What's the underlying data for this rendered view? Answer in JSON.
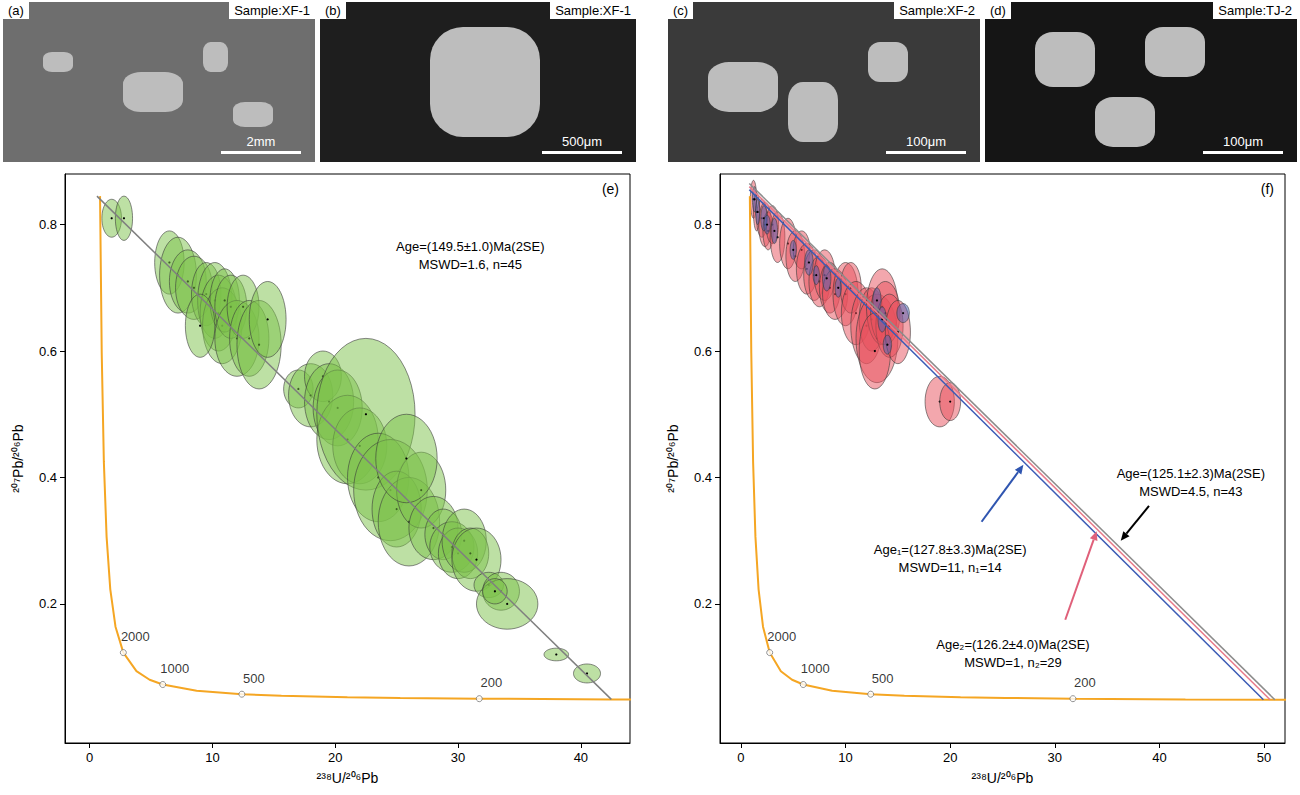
{
  "panels": [
    {
      "letter": "(a)",
      "sample": "Sample:XF-1",
      "scale_bar": "2mm"
    },
    {
      "letter": "(b)",
      "sample": "Sample:XF-1",
      "scale_bar": "500μm"
    },
    {
      "letter": "(c)",
      "sample": "Sample:XF-2",
      "scale_bar": "100μm"
    },
    {
      "letter": "(d)",
      "sample": "Sample:TJ-2",
      "scale_bar": "100μm"
    }
  ],
  "chart_data": [
    {
      "type": "scatter",
      "panel": "(e)",
      "x_label": "²³⁸U/²⁰⁶Pb",
      "y_label": "²⁰⁷Pb/²⁰⁶Pb",
      "xlim": [
        -2,
        44
      ],
      "ylim": [
        -0.02,
        0.88
      ],
      "xticks": [
        0,
        10,
        20,
        30,
        40
      ],
      "yticks": [
        0.2,
        0.4,
        0.6,
        0.8
      ],
      "concordia": {
        "color": "#f5a623",
        "x": [
          0.853,
          0.99,
          1.163,
          1.387,
          1.687,
          2.111,
          2.749,
          3.817,
          4.888,
          5.959,
          8.718,
          12.4,
          15.62,
          20.99,
          25.29,
          31.73,
          42.48,
          51.03,
          63.97
        ],
        "y": [
          0.845,
          0.597,
          0.425,
          0.306,
          0.223,
          0.164,
          0.123,
          0.0936,
          0.0801,
          0.0725,
          0.0628,
          0.0572,
          0.0547,
          0.0523,
          0.0512,
          0.0501,
          0.049,
          0.0485,
          0.048
        ],
        "age_marks": [
          {
            "age": 2000,
            "x": 2.749,
            "y": 0.123
          },
          {
            "age": 1000,
            "x": 5.959,
            "y": 0.0725
          },
          {
            "age": 500,
            "x": 12.4,
            "y": 0.0572
          },
          {
            "age": 200,
            "x": 31.73,
            "y": 0.0501
          }
        ]
      },
      "ellipses": [
        {
          "color": "#7cc24a",
          "x": [
            1.8,
            2.8,
            6.5,
            7.2,
            8,
            8.5,
            9.5,
            10.2,
            10.5,
            10.8,
            11,
            11.5,
            12,
            12.5,
            13,
            13.8,
            14.5,
            9,
            17,
            18,
            19,
            19.5,
            20.2,
            21,
            22,
            22.5,
            23.5,
            24.5,
            25,
            26,
            27,
            28,
            28.8,
            29.5,
            30,
            30.5,
            31,
            31.5,
            32.5,
            33.5,
            34,
            33,
            38,
            40.5,
            25.8
          ],
          "y": [
            0.81,
            0.81,
            0.74,
            0.72,
            0.71,
            0.7,
            0.69,
            0.68,
            0.66,
            0.64,
            0.68,
            0.67,
            0.62,
            0.67,
            0.62,
            0.61,
            0.65,
            0.64,
            0.54,
            0.53,
            0.56,
            0.52,
            0.51,
            0.46,
            0.45,
            0.5,
            0.4,
            0.38,
            0.35,
            0.33,
            0.38,
            0.32,
            0.31,
            0.29,
            0.28,
            0.3,
            0.28,
            0.27,
            0.23,
            0.22,
            0.2,
            0.22,
            0.12,
            0.09,
            0.43
          ],
          "x_err": [
            0.8,
            0.7,
            1.2,
            1.5,
            1.5,
            1.5,
            1.2,
            1.4,
            1.5,
            1.6,
            1.2,
            1.3,
            1.8,
            1.3,
            1.6,
            1.8,
            1.5,
            1.2,
            1.2,
            1.8,
            1.5,
            2,
            2,
            2.5,
            2.2,
            4,
            2.5,
            3,
            2,
            2.5,
            2,
            2,
            1.5,
            1.8,
            1.6,
            1.8,
            1.5,
            2,
            1.2,
            1.5,
            2.5,
            1,
            1,
            1.1,
            2.5
          ],
          "y_err": [
            0.03,
            0.035,
            0.05,
            0.06,
            0.05,
            0.05,
            0.05,
            0.06,
            0.06,
            0.06,
            0.05,
            0.05,
            0.06,
            0.05,
            0.06,
            0.07,
            0.06,
            0.05,
            0.03,
            0.05,
            0.04,
            0.06,
            0.06,
            0.07,
            0.06,
            0.12,
            0.07,
            0.08,
            0.06,
            0.07,
            0.06,
            0.05,
            0.04,
            0.04,
            0.04,
            0.05,
            0.04,
            0.05,
            0.02,
            0.03,
            0.04,
            0.02,
            0.01,
            0.015,
            0.07
          ]
        }
      ],
      "regressions": [
        {
          "color": "#7f7f7f",
          "x": [
            0.6,
            42.48
          ],
          "y": [
            0.845,
            0.049
          ]
        }
      ],
      "annotations": [
        {
          "lines": [
            "Age=(149.5±1.0)Ma(2SE)",
            "MSWD=1.6, n=45"
          ],
          "color": "#000000"
        }
      ]
    },
    {
      "type": "scatter",
      "panel": "(f)",
      "x_label": "²³⁸U/²⁰⁶Pb",
      "y_label": "²⁰⁷Pb/²⁰⁶Pb",
      "xlim": [
        -2,
        52
      ],
      "ylim": [
        -0.02,
        0.88
      ],
      "xticks": [
        0,
        10,
        20,
        30,
        40,
        50
      ],
      "yticks": [
        0.2,
        0.4,
        0.6,
        0.8
      ],
      "concordia": {
        "color": "#f5a623",
        "x": [
          0.853,
          0.99,
          1.163,
          1.387,
          1.687,
          2.111,
          2.749,
          3.817,
          4.888,
          5.959,
          8.718,
          12.4,
          15.62,
          20.99,
          25.29,
          31.73,
          42.48,
          51.03,
          63.97
        ],
        "y": [
          0.845,
          0.597,
          0.425,
          0.306,
          0.223,
          0.164,
          0.123,
          0.0936,
          0.0801,
          0.0725,
          0.0628,
          0.0572,
          0.0547,
          0.0523,
          0.0512,
          0.0501,
          0.049,
          0.0485,
          0.048
        ],
        "age_marks": [
          {
            "age": 2000,
            "x": 2.749,
            "y": 0.123
          },
          {
            "age": 1000,
            "x": 5.959,
            "y": 0.0725
          },
          {
            "age": 500,
            "x": 12.4,
            "y": 0.0572
          },
          {
            "age": 200,
            "x": 31.73,
            "y": 0.0501
          }
        ]
      },
      "ellipses": [
        {
          "color": "#e8505b",
          "x": [
            1.2,
            1.5,
            2,
            2.3,
            2.6,
            3,
            3.5,
            4.5,
            5.2,
            5.8,
            6.3,
            7,
            7.5,
            8,
            8.5,
            9,
            10,
            10.5,
            11,
            12,
            12.5,
            13,
            13.5,
            13.8,
            14.2,
            12.8,
            15,
            19,
            20
          ],
          "y": [
            0.84,
            0.82,
            0.81,
            0.8,
            0.79,
            0.8,
            0.78,
            0.77,
            0.75,
            0.76,
            0.73,
            0.72,
            0.71,
            0.72,
            0.7,
            0.69,
            0.69,
            0.7,
            0.66,
            0.64,
            0.65,
            0.62,
            0.67,
            0.66,
            0.64,
            0.6,
            0.63,
            0.52,
            0.52
          ],
          "x_err": [
            0.3,
            0.3,
            0.5,
            0.6,
            0.5,
            0.6,
            0.7,
            0.8,
            0.9,
            0.8,
            1,
            1,
            1,
            1,
            1,
            1.2,
            1.2,
            1,
            1.4,
            1.5,
            1.2,
            2,
            1.5,
            1.4,
            1.3,
            1.5,
            1.2,
            1.4,
            1
          ],
          "y_err": [
            0.03,
            0.03,
            0.03,
            0.035,
            0.03,
            0.03,
            0.04,
            0.04,
            0.04,
            0.03,
            0.04,
            0.04,
            0.04,
            0.04,
            0.04,
            0.04,
            0.05,
            0.04,
            0.05,
            0.06,
            0.05,
            0.07,
            0.06,
            0.05,
            0.05,
            0.06,
            0.05,
            0.04,
            0.03
          ]
        },
        {
          "color": "#4a64b8",
          "x": [
            1.3,
            1.6,
            2.2,
            2.5,
            3.2,
            5,
            6.5,
            7.2,
            8.2,
            9.3,
            13,
            13.5,
            14,
            15.5
          ],
          "y": [
            0.84,
            0.82,
            0.81,
            0.8,
            0.79,
            0.76,
            0.74,
            0.72,
            0.715,
            0.7,
            0.68,
            0.65,
            0.61,
            0.66
          ],
          "x_err": [
            0.2,
            0.2,
            0.3,
            0.3,
            0.3,
            0.3,
            0.4,
            0.3,
            0.4,
            0.3,
            0.4,
            0.4,
            0.4,
            0.6
          ],
          "y_err": [
            0.02,
            0.02,
            0.02,
            0.015,
            0.02,
            0.015,
            0.02,
            0.015,
            0.02,
            0.015,
            0.02,
            0.02,
            0.015,
            0.015
          ]
        }
      ],
      "regressions": [
        {
          "color": "#8c8c8c",
          "x": [
            0.8,
            51.03
          ],
          "y": [
            0.865,
            0.0485
          ]
        },
        {
          "color": "#e87a8a",
          "x": [
            0.8,
            50.58
          ],
          "y": [
            0.86,
            0.0485
          ]
        },
        {
          "color": "#3b5bb5",
          "x": [
            0.8,
            49.94
          ],
          "y": [
            0.855,
            0.0485
          ]
        }
      ],
      "annotations": [
        {
          "lines": [
            "Age₁=(127.8±3.3)Ma(2SE)",
            "MSWD=11, n₁=14"
          ],
          "color": "#2f55b0"
        },
        {
          "lines": [
            "Age₂=(126.2±4.0)Ma(2SE)",
            "MSWD=1, n₂=29"
          ],
          "color": "#e0607a"
        },
        {
          "lines": [
            "Age=(125.1±2.3)Ma(2SE)",
            "MSWD=4.5, n=43"
          ],
          "color": "#000000"
        }
      ]
    }
  ]
}
